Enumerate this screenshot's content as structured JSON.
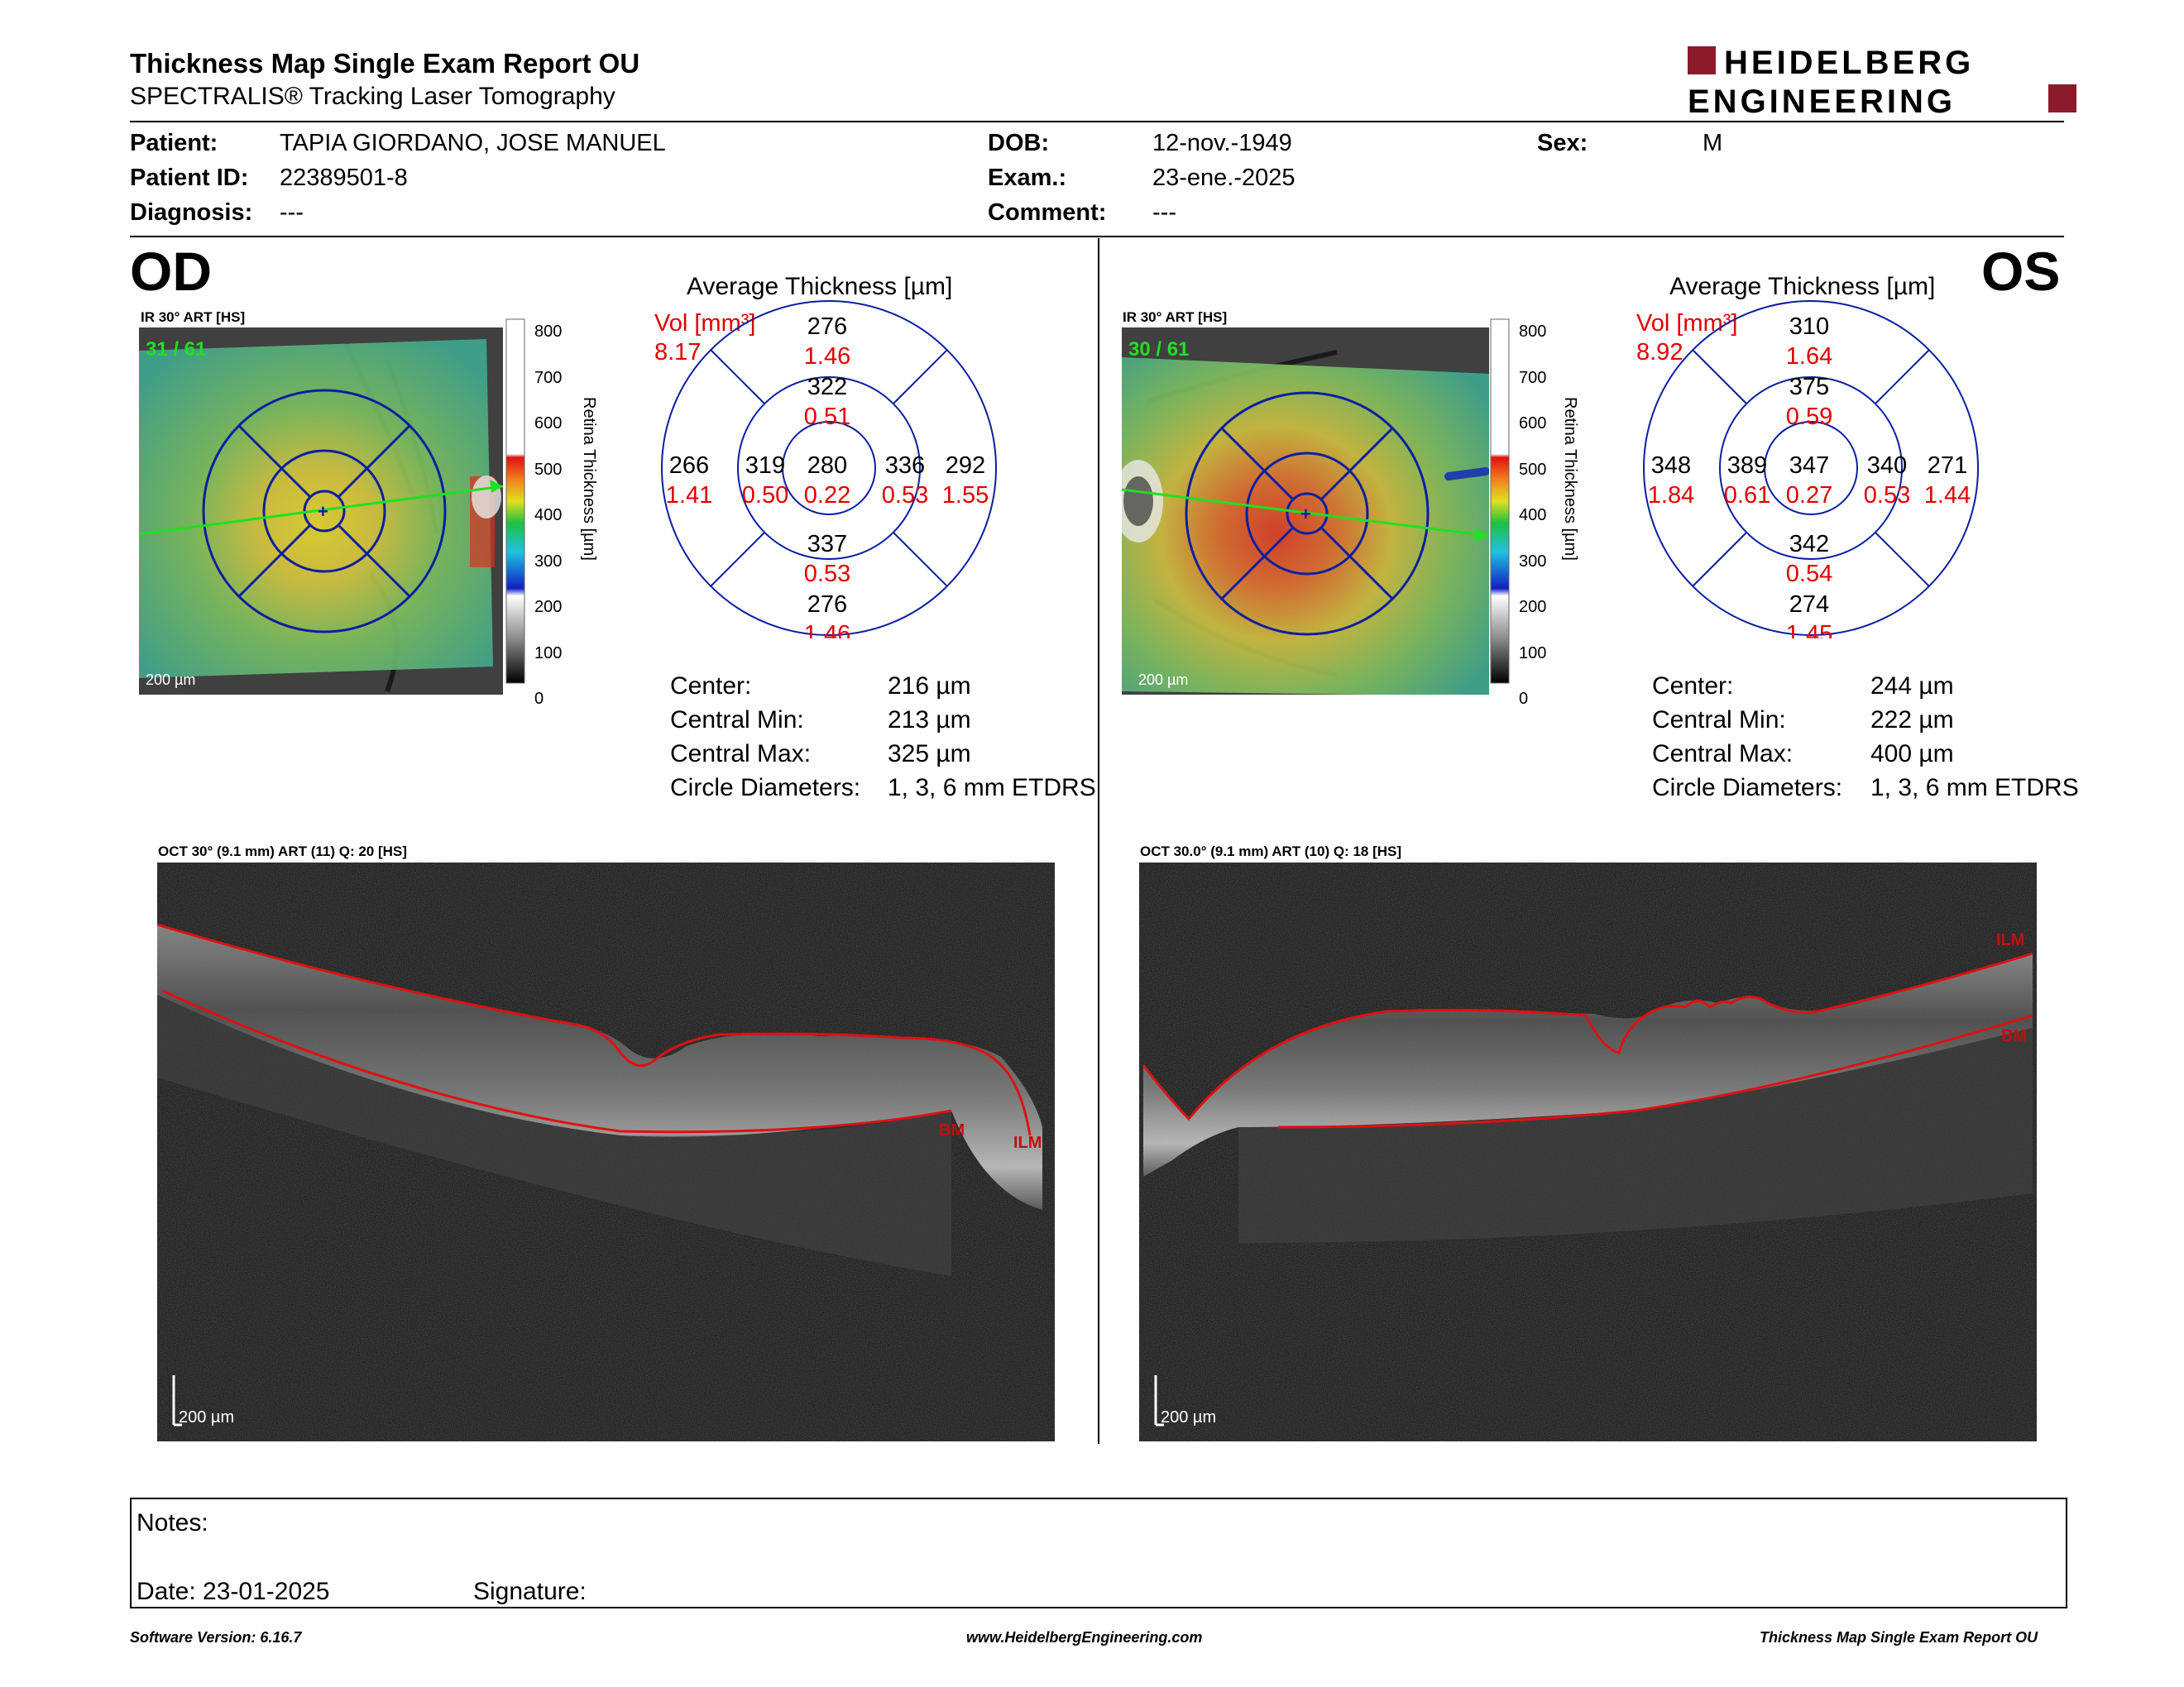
{
  "header": {
    "title": "Thickness Map Single Exam Report OU",
    "subtitle": "SPECTRALIS® Tracking Laser Tomography",
    "logo_line1": "HEIDELBERG",
    "logo_line2": "ENGINEERING"
  },
  "patient": {
    "patient_label": "Patient:",
    "patient_value": "TAPIA GIORDANO, JOSE MANUEL",
    "dob_label": "DOB:",
    "dob_value": "12-nov.-1949",
    "sex_label": "Sex:",
    "sex_value": "M",
    "id_label": "Patient ID:",
    "id_value": "22389501-8",
    "exam_label": "Exam.:",
    "exam_value": "23-ene.-2025",
    "diag_label": "Diagnosis:",
    "diag_value": "---",
    "comment_label": "Comment:",
    "comment_value": "---"
  },
  "colorbar": {
    "ticks": [
      "800",
      "700",
      "600",
      "500",
      "400",
      "300",
      "200",
      "100",
      "0"
    ],
    "axis_label": "Retina Thickness [µm]"
  },
  "od": {
    "eye": "OD",
    "fundus_caption": "IR 30° ART [HS]",
    "frame": "31 / 61",
    "scale": "200 µm",
    "avg_title": "Average Thickness [µm]",
    "vol_label": "Vol [mm³]",
    "vol_value": "8.17",
    "sectors": {
      "center": {
        "t": "280",
        "v": "0.22"
      },
      "inner_sup": {
        "t": "322",
        "v": "0.51"
      },
      "inner_inf": {
        "t": "337",
        "v": "0.53"
      },
      "inner_left": {
        "t": "319",
        "v": "0.50"
      },
      "inner_right": {
        "t": "336",
        "v": "0.53"
      },
      "outer_sup": {
        "t": "276",
        "v": "1.46"
      },
      "outer_inf": {
        "t": "276",
        "v": "1.46"
      },
      "outer_left": {
        "t": "266",
        "v": "1.41"
      },
      "outer_right": {
        "t": "292",
        "v": "1.55"
      }
    },
    "stats": {
      "center_label": "Center:",
      "center_value": "216 µm",
      "min_label": "Central Min:",
      "min_value": "213 µm",
      "max_label": "Central Max:",
      "max_value": "325 µm",
      "circ_label": "Circle Diameters:",
      "circ_value": "1, 3, 6 mm ETDRS"
    },
    "oct_caption": "OCT 30° (9.1 mm) ART (11) Q: 20 [HS]",
    "oct_scale": "200 µm",
    "label_bm": "BM",
    "label_ilm": "ILM"
  },
  "os": {
    "eye": "OS",
    "fundus_caption": "IR 30° ART [HS]",
    "frame": "30 / 61",
    "scale": "200 µm",
    "avg_title": "Average Thickness [µm]",
    "vol_label": "Vol [mm³]",
    "vol_value": "8.92",
    "sectors": {
      "center": {
        "t": "347",
        "v": "0.27"
      },
      "inner_sup": {
        "t": "375",
        "v": "0.59"
      },
      "inner_inf": {
        "t": "342",
        "v": "0.54"
      },
      "inner_left": {
        "t": "389",
        "v": "0.61"
      },
      "inner_right": {
        "t": "340",
        "v": "0.53"
      },
      "outer_sup": {
        "t": "310",
        "v": "1.64"
      },
      "outer_inf": {
        "t": "274",
        "v": "1.45"
      },
      "outer_left": {
        "t": "348",
        "v": "1.84"
      },
      "outer_right": {
        "t": "271",
        "v": "1.44"
      }
    },
    "stats": {
      "center_label": "Center:",
      "center_value": "244 µm",
      "min_label": "Central Min:",
      "min_value": "222 µm",
      "max_label": "Central Max:",
      "max_value": "400 µm",
      "circ_label": "Circle Diameters:",
      "circ_value": "1, 3, 6 mm ETDRS"
    },
    "oct_caption": "OCT 30.0° (9.1 mm) ART (10) Q: 18 [HS]",
    "oct_scale": "200 µm",
    "label_bm": "BM",
    "label_ilm": "ILM"
  },
  "notes": {
    "notes_label": "Notes:",
    "date_label": "Date: 23-01-2025",
    "signature_label": "Signature:"
  },
  "footer": {
    "software": "Software Version: 6.16.7",
    "website": "www.HeidelbergEngineering.com",
    "report": "Thickness Map Single Exam Report OU"
  },
  "colors": {
    "accent_red": "#e00000",
    "logo_red": "#8b1a2b",
    "grid_blue": "#0a1fa0"
  }
}
